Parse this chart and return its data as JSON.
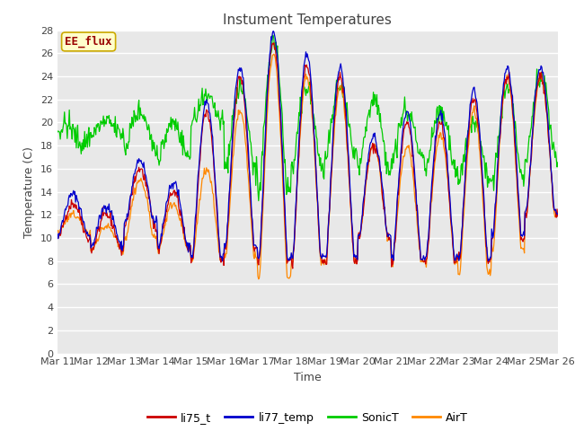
{
  "title": "Instument Temperatures",
  "xlabel": "Time",
  "ylabel": "Temperature (C)",
  "ylim": [
    0,
    28
  ],
  "yticks": [
    0,
    2,
    4,
    6,
    8,
    10,
    12,
    14,
    16,
    18,
    20,
    22,
    24,
    26,
    28
  ],
  "x_tick_labels": [
    "Mar 11",
    "Mar 12",
    "Mar 13",
    "Mar 14",
    "Mar 15",
    "Mar 16",
    "Mar 17",
    "Mar 18",
    "Mar 19",
    "Mar 20",
    "Mar 21",
    "Mar 22",
    "Mar 23",
    "Mar 24",
    "Mar 25",
    "Mar 26"
  ],
  "colors": {
    "li75_t": "#cc0000",
    "li77_temp": "#0000cc",
    "SonicT": "#00cc00",
    "AirT": "#ff8800"
  },
  "annotation_text": "EE_flux",
  "annotation_box_facecolor": "#ffffcc",
  "annotation_box_edgecolor": "#ccaa00",
  "annotation_text_color": "#990000",
  "fig_facecolor": "#ffffff",
  "plot_bg_color": "#e8e8e8",
  "grid_color": "#ffffff",
  "legend_items": [
    "li75_t",
    "li77_temp",
    "SonicT",
    "AirT"
  ],
  "title_fontsize": 11,
  "axis_label_fontsize": 9,
  "tick_fontsize": 8,
  "n_days": 15,
  "pts_per_day": 48,
  "seed": 42
}
